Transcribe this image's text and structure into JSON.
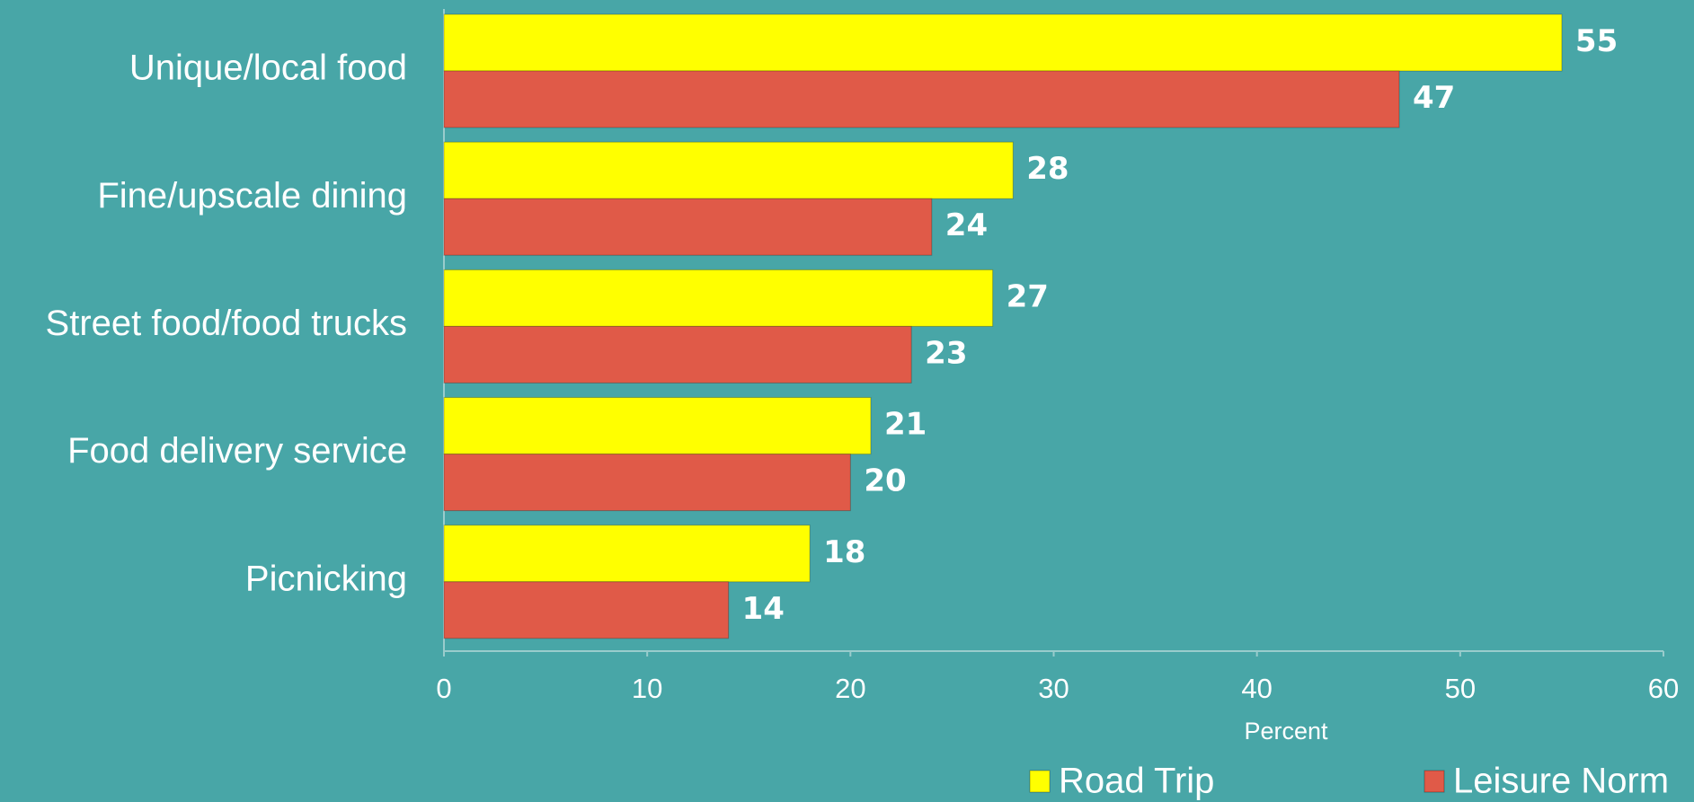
{
  "chart_data": {
    "type": "bar",
    "orientation": "horizontal",
    "categories": [
      "Unique/local food",
      "Fine/upscale dining",
      "Street food/food trucks",
      "Food delivery service",
      "Picnicking"
    ],
    "series": [
      {
        "name": "Road Trip",
        "color": "#ffff00",
        "values": [
          55,
          28,
          27,
          21,
          18
        ]
      },
      {
        "name": "Leisure Norm",
        "color": "#e05a48",
        "values": [
          47,
          24,
          23,
          20,
          14
        ]
      }
    ],
    "x_label": "Percent",
    "xlim": [
      0,
      60
    ],
    "xticks": [
      0,
      10,
      20,
      30,
      40,
      50,
      60
    ],
    "grid": false,
    "legend": "bottom"
  }
}
